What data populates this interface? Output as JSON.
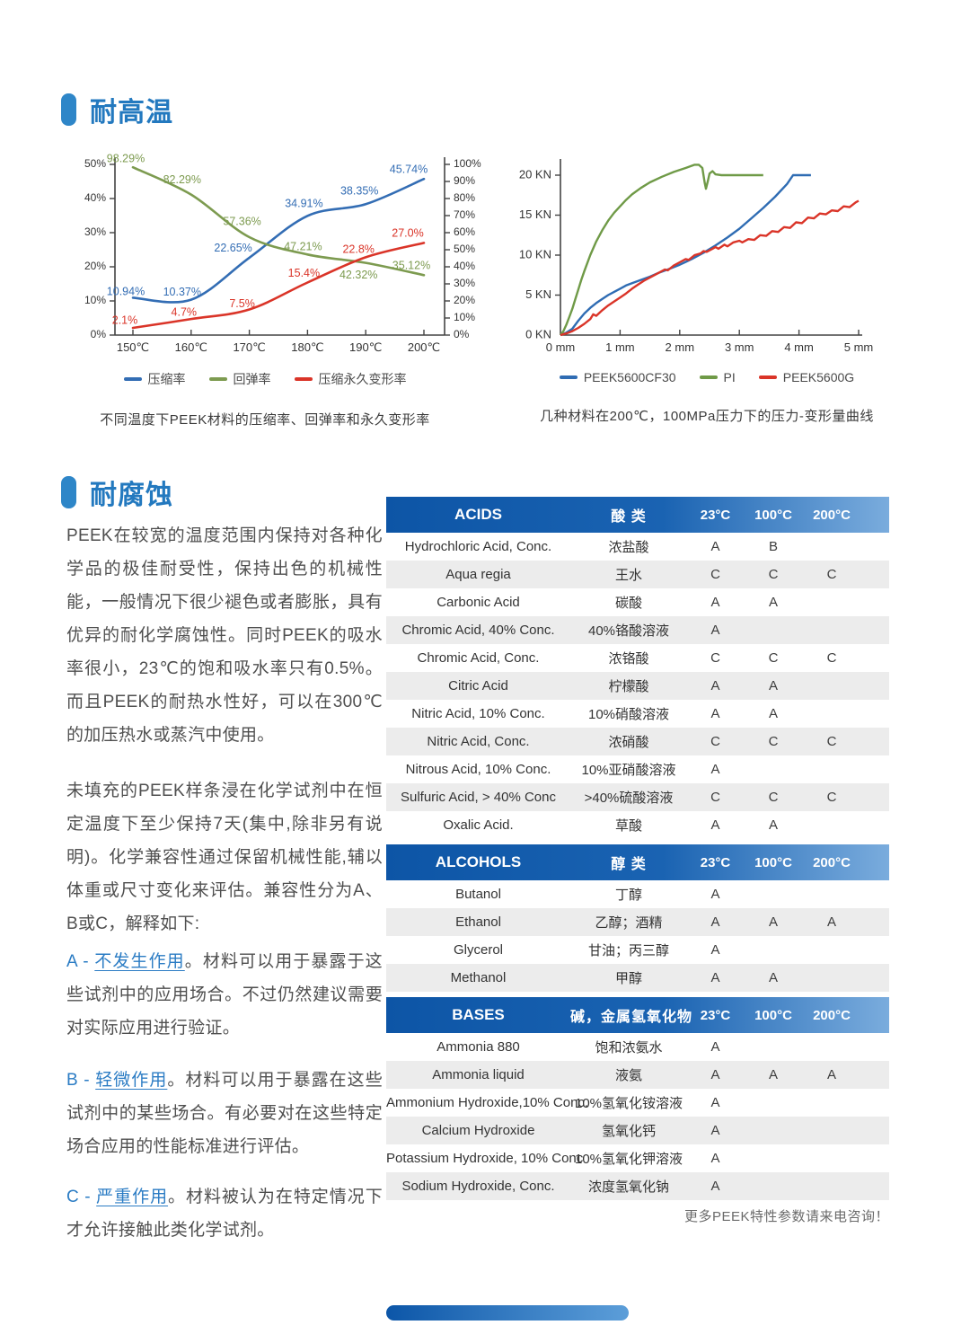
{
  "sections": {
    "heat": {
      "title": "耐高温"
    },
    "corrosion": {
      "title": "耐腐蚀"
    }
  },
  "intro": {
    "p1": "PEEK在较宽的温度范围内保持对各种化学品的极佳耐受性，保持出色的机械性能，一般情况下很少褪色或者膨胀，具有优异的耐化学腐蚀性。同时PEEK的吸水率很小，23℃的饱和吸水率只有0.5%。而且PEEK的耐热水性好，可以在300℃的加压热水或蒸汽中使用。",
    "p2": "未填充的PEEK样条浸在化学试剂中在恒定温度下至少保持7天(集中,除非另有说明)。化学兼容性通过保留机械性能,辅以体重或尺寸变化来评估。兼容性分为A、B或C，解释如下:"
  },
  "definitions": [
    {
      "prefix": "A - ",
      "term": "不发生作用",
      "desc": "。材料可以用于暴露于这些试剂中的应用场合。不过仍然建议需要对实际应用进行验证。"
    },
    {
      "prefix": "B - ",
      "term": "轻微作用",
      "desc": "。材料可以用于暴露在这些试剂中的某些场合。有必要对在这些特定场合应用的性能标准进行评估。"
    },
    {
      "prefix": "C - ",
      "term": "严重作用",
      "desc": "。材料被认为在特定情况下才允许接触此类化学试剂。"
    }
  ],
  "chart_data": [
    {
      "type": "line",
      "caption": "不同温度下PEEK材料的压缩率、回弹率和永久变形率",
      "categories": [
        "150℃",
        "160℃",
        "170℃",
        "180℃",
        "190℃",
        "200℃"
      ],
      "left_axis": {
        "range": [
          0,
          50
        ],
        "ticks": [
          "0%",
          "10%",
          "20%",
          "30%",
          "40%",
          "50%"
        ]
      },
      "right_axis": {
        "range": [
          0,
          100
        ],
        "ticks": [
          "0%",
          "10%",
          "20%",
          "30%",
          "40%",
          "50%",
          "60%",
          "70%",
          "80%",
          "90%",
          "100%"
        ]
      },
      "grid": false,
      "legend_position": "bottom",
      "series": [
        {
          "name": "压缩率",
          "color": "#336db4",
          "axis": "left",
          "values": [
            10.94,
            10.37,
            22.65,
            34.91,
            38.35,
            45.74
          ],
          "labels": [
            "10.94%",
            "10.37%",
            "22.65%",
            "34.91%",
            "38.35%",
            "45.74%"
          ]
        },
        {
          "name": "回弹率",
          "color": "#7d9b50",
          "axis": "right",
          "values": [
            98.29,
            82.29,
            57.36,
            47.21,
            42.32,
            35.12
          ],
          "labels": [
            "98.29%",
            "82.29%",
            "57.36%",
            "47.21%",
            "42.32%",
            "35.12%"
          ]
        },
        {
          "name": "压缩永久变形率",
          "color": "#da3428",
          "axis": "left",
          "values": [
            2.1,
            4.7,
            7.5,
            15.4,
            22.8,
            27.0
          ],
          "labels": [
            "2.1%",
            "4.7%",
            "7.5%",
            "15.4%",
            "22.8%",
            "27.0%"
          ]
        }
      ]
    },
    {
      "type": "line",
      "caption": "几种材料在200℃，100MPa压力下的压力-变形量曲线",
      "x_range": [
        0,
        5
      ],
      "y_range": [
        0,
        20
      ],
      "x_ticks": [
        "0 mm",
        "1 mm",
        "2 mm",
        "3 mm",
        "4 mm",
        "5 mm"
      ],
      "y_ticks": [
        "0 KN",
        "5 KN",
        "10 KN",
        "15 KN",
        "20 KN"
      ],
      "grid": false,
      "legend_position": "bottom",
      "series": [
        {
          "name": "PEEK5600CF30",
          "color": "#2f6cb3",
          "points": [
            [
              0,
              0
            ],
            [
              0.1,
              0.3
            ],
            [
              0.2,
              0.8
            ],
            [
              0.3,
              1.8
            ],
            [
              0.4,
              2.7
            ],
            [
              0.5,
              3.4
            ],
            [
              0.6,
              4.0
            ],
            [
              0.7,
              4.5
            ],
            [
              0.8,
              5.0
            ],
            [
              0.9,
              5.4
            ],
            [
              1.0,
              5.8
            ],
            [
              1.1,
              6.2
            ],
            [
              1.2,
              6.5
            ],
            [
              1.35,
              6.9
            ],
            [
              1.5,
              7.3
            ],
            [
              1.65,
              7.8
            ],
            [
              1.8,
              8.2
            ],
            [
              2.0,
              8.8
            ],
            [
              2.2,
              9.5
            ],
            [
              2.4,
              10.3
            ],
            [
              2.6,
              11.2
            ],
            [
              2.8,
              12.2
            ],
            [
              3.0,
              13.3
            ],
            [
              3.2,
              14.6
            ],
            [
              3.4,
              15.9
            ],
            [
              3.6,
              17.3
            ],
            [
              3.8,
              18.9
            ],
            [
              3.9,
              20
            ],
            [
              4.2,
              20
            ]
          ]
        },
        {
          "name": "PI",
          "color": "#6f9a47",
          "points": [
            [
              0,
              0
            ],
            [
              0.05,
              0.5
            ],
            [
              0.1,
              1.3
            ],
            [
              0.15,
              2.3
            ],
            [
              0.2,
              3.3
            ],
            [
              0.25,
              4.5
            ],
            [
              0.3,
              5.7
            ],
            [
              0.35,
              6.9
            ],
            [
              0.4,
              8.0
            ],
            [
              0.5,
              10.0
            ],
            [
              0.6,
              11.7
            ],
            [
              0.7,
              13.1
            ],
            [
              0.8,
              14.3
            ],
            [
              0.9,
              15.3
            ],
            [
              1.0,
              16.1
            ],
            [
              1.1,
              16.9
            ],
            [
              1.2,
              17.6
            ],
            [
              1.35,
              18.4
            ],
            [
              1.5,
              19.1
            ],
            [
              1.7,
              19.8
            ],
            [
              1.9,
              20.4
            ],
            [
              2.1,
              20.9
            ],
            [
              2.25,
              21.3
            ],
            [
              2.32,
              21.3
            ],
            [
              2.38,
              20.9
            ],
            [
              2.42,
              19.0
            ],
            [
              2.44,
              18.3
            ],
            [
              2.47,
              19.2
            ],
            [
              2.5,
              20.2
            ],
            [
              2.55,
              20.5
            ],
            [
              2.6,
              20.1
            ],
            [
              2.7,
              20.0
            ],
            [
              3.0,
              20.0
            ],
            [
              3.4,
              20.0
            ]
          ]
        },
        {
          "name": "PEEK5600G",
          "color": "#da3428",
          "points": [
            [
              0,
              0
            ],
            [
              0.1,
              0.2
            ],
            [
              0.2,
              0.5
            ],
            [
              0.3,
              0.9
            ],
            [
              0.4,
              1.4
            ],
            [
              0.5,
              2.0
            ],
            [
              0.55,
              2.6
            ],
            [
              0.6,
              2.4
            ],
            [
              0.7,
              3.1
            ],
            [
              0.8,
              3.7
            ],
            [
              0.9,
              4.2
            ],
            [
              1.0,
              4.7
            ],
            [
              1.1,
              5.2
            ],
            [
              1.2,
              5.8
            ],
            [
              1.3,
              6.3
            ],
            [
              1.4,
              6.8
            ],
            [
              1.5,
              7.2
            ],
            [
              1.6,
              7.6
            ],
            [
              1.7,
              8.0
            ],
            [
              1.75,
              8.2
            ],
            [
              1.8,
              8.1
            ],
            [
              1.9,
              8.7
            ],
            [
              2.0,
              9.1
            ],
            [
              2.1,
              9.5
            ],
            [
              2.15,
              9.4
            ],
            [
              2.25,
              10.0
            ],
            [
              2.35,
              10.2
            ],
            [
              2.4,
              10.5
            ],
            [
              2.45,
              10.4
            ],
            [
              2.55,
              10.8
            ],
            [
              2.6,
              11.0
            ],
            [
              2.65,
              10.8
            ],
            [
              2.75,
              11.3
            ],
            [
              2.8,
              11.1
            ],
            [
              2.9,
              11.6
            ],
            [
              3.0,
              11.8
            ],
            [
              3.05,
              11.6
            ],
            [
              3.15,
              12.0
            ],
            [
              3.25,
              11.9
            ],
            [
              3.35,
              12.5
            ],
            [
              3.45,
              12.4
            ],
            [
              3.55,
              13.0
            ],
            [
              3.65,
              12.9
            ],
            [
              3.75,
              13.5
            ],
            [
              3.85,
              13.4
            ],
            [
              3.95,
              14.1
            ],
            [
              4.05,
              14.0
            ],
            [
              4.15,
              14.7
            ],
            [
              4.25,
              14.6
            ],
            [
              4.35,
              15.2
            ],
            [
              4.45,
              15.1
            ],
            [
              4.55,
              15.6
            ],
            [
              4.65,
              15.5
            ],
            [
              4.75,
              16.1
            ],
            [
              4.85,
              16.0
            ],
            [
              4.95,
              16.6
            ],
            [
              5.0,
              16.8
            ]
          ]
        }
      ]
    }
  ],
  "table": {
    "temps": [
      "23°C",
      "100°C",
      "200°C"
    ],
    "groups": [
      {
        "en": "ACIDS",
        "zh": "酸 类",
        "rows": [
          {
            "en": "Hydrochloric Acid, Conc.",
            "zh": "浓盐酸",
            "grades": [
              "A",
              "B",
              ""
            ]
          },
          {
            "en": "Aqua regia",
            "zh": "王水",
            "grades": [
              "C",
              "C",
              "C"
            ]
          },
          {
            "en": "Carbonic Acid",
            "zh": "碳酸",
            "grades": [
              "A",
              "A",
              ""
            ]
          },
          {
            "en": "Chromic Acid, 40% Conc.",
            "zh": "40%铬酸溶液",
            "grades": [
              "A",
              "",
              ""
            ]
          },
          {
            "en": "Chromic Acid, Conc.",
            "zh": "浓铬酸",
            "grades": [
              "C",
              "C",
              "C"
            ]
          },
          {
            "en": "Citric Acid",
            "zh": "柠檬酸",
            "grades": [
              "A",
              "A",
              ""
            ]
          },
          {
            "en": "Nitric Acid, 10% Conc.",
            "zh": "10%硝酸溶液",
            "grades": [
              "A",
              "A",
              ""
            ]
          },
          {
            "en": "Nitric Acid, Conc.",
            "zh": "浓硝酸",
            "grades": [
              "C",
              "C",
              "C"
            ]
          },
          {
            "en": "Nitrous Acid, 10% Conc.",
            "zh": "10%亚硝酸溶液",
            "grades": [
              "A",
              "",
              ""
            ]
          },
          {
            "en": "Sulfuric Acid, > 40% Conc",
            "zh": ">40%硫酸溶液",
            "grades": [
              "C",
              "C",
              "C"
            ]
          },
          {
            "en": "Oxalic Acid.",
            "zh": "草酸",
            "grades": [
              "A",
              "A",
              ""
            ]
          }
        ]
      },
      {
        "en": "ALCOHOLS",
        "zh": "醇 类",
        "rows": [
          {
            "en": "Butanol",
            "zh": "丁醇",
            "grades": [
              "A",
              "",
              ""
            ]
          },
          {
            "en": "Ethanol",
            "zh": "乙醇；酒精",
            "grades": [
              "A",
              "A",
              "A"
            ]
          },
          {
            "en": "Glycerol",
            "zh": "甘油；丙三醇",
            "grades": [
              "A",
              "",
              ""
            ]
          },
          {
            "en": "Methanol",
            "zh": "甲醇",
            "grades": [
              "A",
              "A",
              ""
            ]
          }
        ]
      },
      {
        "en": "BASES",
        "zh": "碱，金属氢氧化物",
        "rows": [
          {
            "en": "Ammonia 880",
            "zh": "饱和浓氨水",
            "grades": [
              "A",
              "",
              ""
            ]
          },
          {
            "en": "Ammonia liquid",
            "zh": "液氨",
            "grades": [
              "A",
              "A",
              "A"
            ]
          },
          {
            "en": "Ammonium Hydroxide,10% Conc.",
            "zh": "10%氢氧化铵溶液",
            "grades": [
              "A",
              "",
              ""
            ]
          },
          {
            "en": "Calcium Hydroxide",
            "zh": "氢氧化钙",
            "grades": [
              "A",
              "",
              ""
            ]
          },
          {
            "en": "Potassium Hydroxide, 10% Conc",
            "zh": "10%氢氧化钾溶液",
            "grades": [
              "A",
              "",
              ""
            ]
          },
          {
            "en": "Sodium Hydroxide, Conc.",
            "zh": "浓度氢氧化钠",
            "grades": [
              "A",
              "",
              ""
            ]
          }
        ]
      }
    ],
    "note": "更多PEEK特性参数请来电咨询！"
  },
  "colors": {
    "accent_blue": "#2379bf",
    "header_gradient_start": "#0d55a6",
    "header_gradient_end": "#7aacdd",
    "series_blue": "#336db4",
    "series_green": "#7d9b50",
    "series_red": "#da3428",
    "row_alt": "#ececec"
  }
}
